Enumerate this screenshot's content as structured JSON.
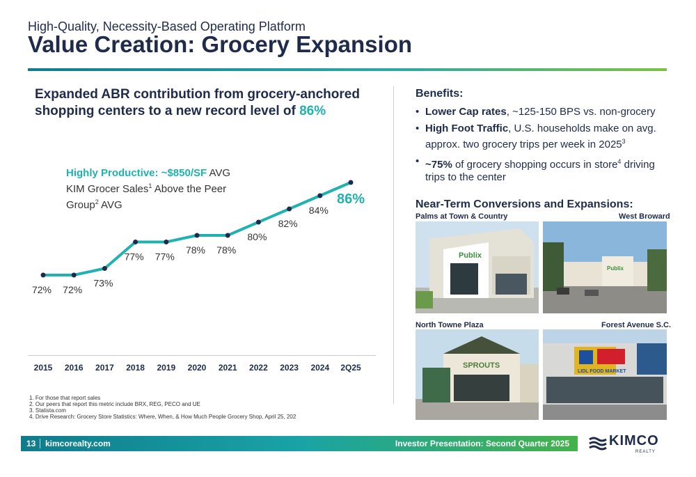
{
  "header": {
    "subtitle": "High-Quality, Necessity-Based Operating Platform",
    "title": "Value Creation: Grocery Expansion"
  },
  "left": {
    "headline_part1": "Expanded ABR contribution from grocery-anchored shopping centers to a new record level of ",
    "headline_accent": "86%",
    "callout_highlight": "Highly Productive: ~$850/SF",
    "callout_text_a": " AVG KIM Grocer Sales",
    "callout_sup_a": "1",
    "callout_text_b": " Above the Peer Group",
    "callout_sup_b": "2",
    "callout_text_c": " AVG",
    "footnotes": [
      "1. For those that report sales",
      "2. Our peers that report this metric include BRX, REG, PECO and UE",
      "3. Statista.com",
      "4. Drive Research: Grocery Store Statistics: Where, When, & How Much People Grocery Shop, April 25, 202"
    ]
  },
  "chart_data": {
    "type": "line",
    "categories": [
      "2015",
      "2016",
      "2017",
      "2018",
      "2019",
      "2020",
      "2021",
      "2022",
      "2023",
      "2024",
      "2Q25"
    ],
    "values": [
      72,
      72,
      73,
      77,
      77,
      78,
      78,
      80,
      82,
      84,
      86
    ],
    "data_labels": [
      "72%",
      "72%",
      "73%",
      "77%",
      "77%",
      "78%",
      "78%",
      "80%",
      "82%",
      "84%",
      "86%"
    ],
    "ylim": [
      70,
      87
    ],
    "grid": false,
    "line_color": "#1fb2b0",
    "marker_color": "#1e2b4a"
  },
  "right": {
    "benefits_title": "Benefits:",
    "benefits": [
      {
        "bold": "Lower Cap rates",
        "text": ", ~125-150 BPS vs. non-grocery",
        "sup": ""
      },
      {
        "bold": "High Foot Traffic",
        "text": ", U.S. households make on avg. approx. two grocery trips per week in 2025",
        "sup": "3"
      },
      {
        "bold": "~75%",
        "text": " of grocery shopping occurs in store",
        "sup": "4",
        "text2": " driving trips to the center"
      }
    ],
    "conversions_title": "Near-Term Conversions and Expansions:",
    "photos": [
      {
        "label": "Palms at Town & Country",
        "sign": "Publix"
      },
      {
        "label": "West Broward",
        "sign": "Publix"
      },
      {
        "label": "North Towne Plaza",
        "sign": "SPROUTS"
      },
      {
        "label": "Forest Avenue S.C.",
        "sign": "LIDL FOOD MARKET"
      }
    ]
  },
  "footer": {
    "page_number": "13",
    "site": "kimcorealty.com",
    "presentation": "Investor Presentation: Second Quarter 2025",
    "logo_text": "KIMCO",
    "logo_sub": "REALTY"
  },
  "colors": {
    "navy": "#1e2b4a",
    "teal": "#1fb2b0",
    "green": "#45b24a"
  }
}
